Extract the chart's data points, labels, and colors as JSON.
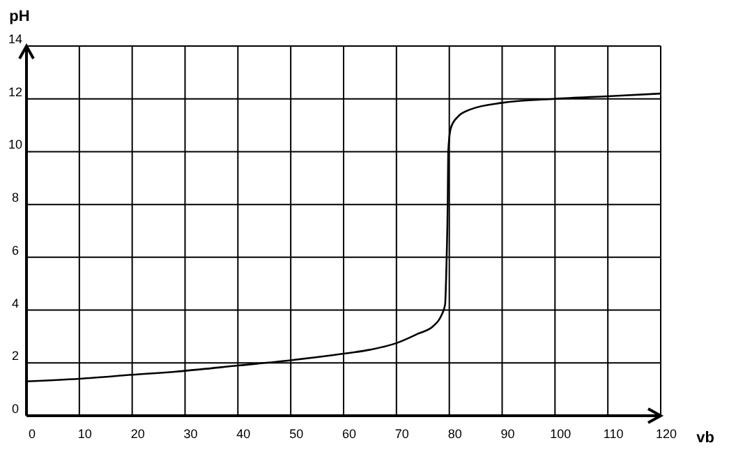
{
  "chart_data": {
    "type": "line",
    "xlabel": "vb",
    "ylabel": "pH",
    "x": [
      0,
      10,
      20,
      30,
      40,
      50,
      60,
      65,
      70,
      74,
      77,
      78.5,
      79.2,
      79.5,
      79.7,
      79.8,
      80.3,
      81.5,
      84,
      90,
      100,
      110,
      120
    ],
    "series": [
      {
        "color": "#000000",
        "values": [
          1.3,
          1.4,
          1.55,
          1.7,
          1.9,
          2.1,
          2.35,
          2.5,
          2.75,
          3.1,
          3.4,
          3.8,
          4.2,
          6,
          8,
          10,
          10.9,
          11.3,
          11.6,
          11.85,
          12.0,
          12.1,
          12.2
        ]
      }
    ],
    "xlim": [
      0,
      120
    ],
    "ylim": [
      0,
      14
    ],
    "xticks": [
      0,
      10,
      20,
      30,
      40,
      50,
      60,
      70,
      80,
      90,
      100,
      110,
      120
    ],
    "yticks": [
      0,
      2,
      4,
      6,
      8,
      10,
      12,
      14
    ],
    "grid": true,
    "marker": "none",
    "line_style": "solid"
  }
}
